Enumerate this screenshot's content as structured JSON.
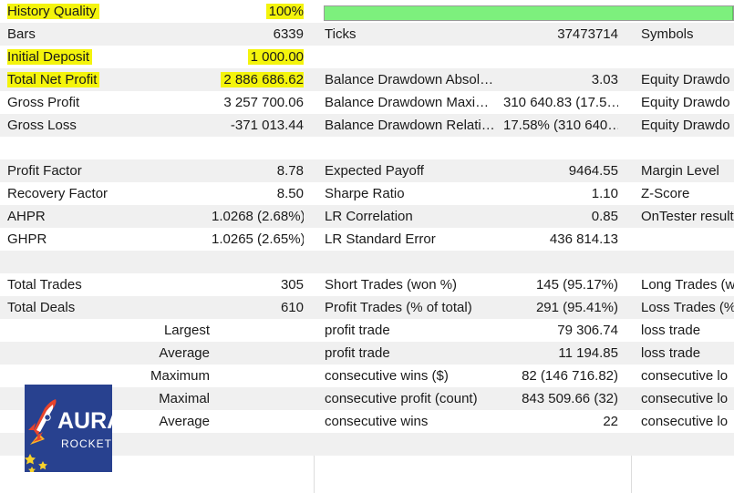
{
  "stats": {
    "history_quality": {
      "label": "History Quality",
      "value": "100%",
      "progress_percent": 100
    },
    "row2": {
      "c1": "Bars",
      "c2": "6339",
      "c3": "Ticks",
      "c4": "37473714",
      "c5": "Symbols"
    },
    "row3": {
      "c1": "Initial Deposit",
      "c2": "1 000.00"
    },
    "row4": {
      "c1": "Total Net Profit",
      "c2": "2 886 686.62",
      "c3": "Balance Drawdown Absol…",
      "c4": "3.03",
      "c5": "Equity Drawdo"
    },
    "row5": {
      "c1": "Gross Profit",
      "c2": "3 257 700.06",
      "c3": "Balance Drawdown Maxi…",
      "c4": "310 640.83 (17.5…",
      "c5": "Equity Drawdo"
    },
    "row6": {
      "c1": "Gross Loss",
      "c2": "-371 013.44",
      "c3": "Balance Drawdown Relati…",
      "c4": "17.58% (310 640…",
      "c5": "Equity Drawdo"
    },
    "row8": {
      "c1": "Profit Factor",
      "c2": "8.78",
      "c3": "Expected Payoff",
      "c4": "9464.55",
      "c5": "Margin Level"
    },
    "row9": {
      "c1": "Recovery Factor",
      "c2": "8.50",
      "c3": "Sharpe Ratio",
      "c4": "1.10",
      "c5": "Z-Score"
    },
    "row10": {
      "c1": "AHPR",
      "c2": "1.0268 (2.68%)",
      "c3": "LR Correlation",
      "c4": "0.85",
      "c5": "OnTester result"
    },
    "row11": {
      "c1": "GHPR",
      "c2": "1.0265 (2.65%)",
      "c3": "LR Standard Error",
      "c4": "436 814.13"
    },
    "row13": {
      "c1": "Total Trades",
      "c2": "305",
      "c3": "Short Trades (won %)",
      "c4": "145 (95.17%)",
      "c5": "Long Trades (w"
    },
    "row14": {
      "c1": "Total Deals",
      "c2": "610",
      "c3": "Profit Trades (% of total)",
      "c4": "291 (95.41%)",
      "c5": "Loss Trades (%"
    },
    "row15": {
      "c1": "Largest",
      "c3": "profit trade",
      "c4": "79 306.74",
      "c5": "loss trade"
    },
    "row16": {
      "c1": "Average",
      "c3": "profit trade",
      "c4": "11 194.85",
      "c5": "loss trade"
    },
    "row17": {
      "c1": "Maximum",
      "c3": "consecutive wins ($)",
      "c4": "82 (146 716.82)",
      "c5": "consecutive lo"
    },
    "row18": {
      "c1": "Maximal",
      "c3": "consecutive profit (count)",
      "c4": "843 509.66 (32)",
      "c5": "consecutive lo"
    },
    "row19": {
      "c1": "Average",
      "c3": "consecutive wins",
      "c4": "22",
      "c5": "consecutive lo"
    }
  },
  "logo": {
    "line1": "AURA",
    "line2": "ROCKET",
    "background": "#28418f",
    "icon": "rocket-icon"
  },
  "colors": {
    "highlight": "#f4f40c",
    "progress_fill": "#7df07d",
    "row_alt": "#f0f0f0"
  }
}
